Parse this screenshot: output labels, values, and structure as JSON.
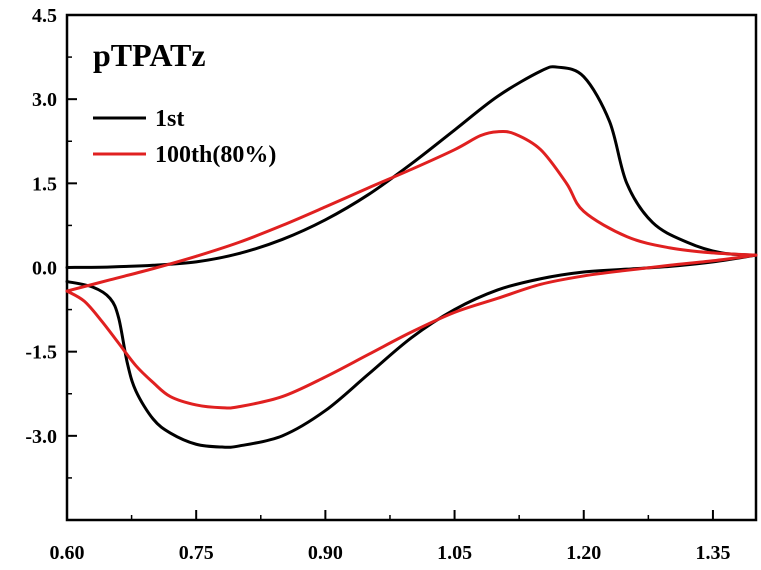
{
  "chart_data": {
    "type": "line",
    "title": "pTPATz",
    "xlabel": "",
    "ylabel": "",
    "xlim": [
      0.6,
      1.4
    ],
    "ylim": [
      -4.5,
      4.5
    ],
    "xticks": [
      "0.60",
      "0.75",
      "0.90",
      "1.05",
      "1.20",
      "1.35"
    ],
    "xtick_values": [
      0.6,
      0.75,
      0.9,
      1.05,
      1.2,
      1.35
    ],
    "yticks": [
      "4.5",
      "3.0",
      "1.5",
      "0.0",
      "-1.5",
      "-3.0"
    ],
    "ytick_values": [
      4.5,
      3.0,
      1.5,
      0.0,
      -1.5,
      -3.0
    ],
    "grid": false,
    "legend_position": "top-left",
    "series": [
      {
        "name": "1st",
        "color": "#000000",
        "forward": {
          "x": [
            0.6,
            0.65,
            0.7,
            0.75,
            0.8,
            0.85,
            0.9,
            0.95,
            1.0,
            1.05,
            1.1,
            1.15,
            1.17,
            1.2,
            1.23,
            1.25,
            1.28,
            1.32,
            1.36,
            1.4
          ],
          "y": [
            0.0,
            0.01,
            0.04,
            0.1,
            0.25,
            0.5,
            0.85,
            1.3,
            1.85,
            2.45,
            3.05,
            3.5,
            3.57,
            3.4,
            2.6,
            1.5,
            0.8,
            0.45,
            0.26,
            0.22
          ]
        },
        "reverse": {
          "x": [
            1.4,
            1.35,
            1.3,
            1.25,
            1.2,
            1.15,
            1.1,
            1.05,
            1.0,
            0.95,
            0.9,
            0.85,
            0.8,
            0.78,
            0.75,
            0.72,
            0.7,
            0.68,
            0.67,
            0.66,
            0.65,
            0.63,
            0.6
          ],
          "y": [
            0.22,
            0.1,
            0.02,
            -0.03,
            -0.08,
            -0.2,
            -0.4,
            -0.75,
            -1.25,
            -1.9,
            -2.55,
            -3.0,
            -3.18,
            -3.2,
            -3.15,
            -2.95,
            -2.7,
            -2.2,
            -1.7,
            -0.9,
            -0.55,
            -0.35,
            -0.25
          ]
        }
      },
      {
        "name": "100th(80%)",
        "color": "#e02020",
        "forward": {
          "x": [
            0.6,
            0.65,
            0.7,
            0.75,
            0.8,
            0.85,
            0.9,
            0.95,
            1.0,
            1.05,
            1.08,
            1.1,
            1.12,
            1.15,
            1.18,
            1.2,
            1.25,
            1.3,
            1.35,
            1.4
          ],
          "y": [
            -0.42,
            -0.22,
            -0.02,
            0.2,
            0.45,
            0.75,
            1.08,
            1.42,
            1.75,
            2.1,
            2.35,
            2.42,
            2.38,
            2.1,
            1.5,
            1.0,
            0.55,
            0.35,
            0.26,
            0.22
          ]
        },
        "reverse": {
          "x": [
            1.4,
            1.35,
            1.3,
            1.25,
            1.2,
            1.15,
            1.1,
            1.05,
            1.0,
            0.95,
            0.9,
            0.85,
            0.8,
            0.78,
            0.75,
            0.72,
            0.7,
            0.68,
            0.66,
            0.64,
            0.62,
            0.6
          ],
          "y": [
            0.22,
            0.12,
            0.04,
            -0.05,
            -0.15,
            -0.3,
            -0.55,
            -0.8,
            -1.15,
            -1.55,
            -1.95,
            -2.3,
            -2.48,
            -2.5,
            -2.45,
            -2.3,
            -2.05,
            -1.75,
            -1.35,
            -0.95,
            -0.6,
            -0.42
          ]
        }
      }
    ]
  }
}
